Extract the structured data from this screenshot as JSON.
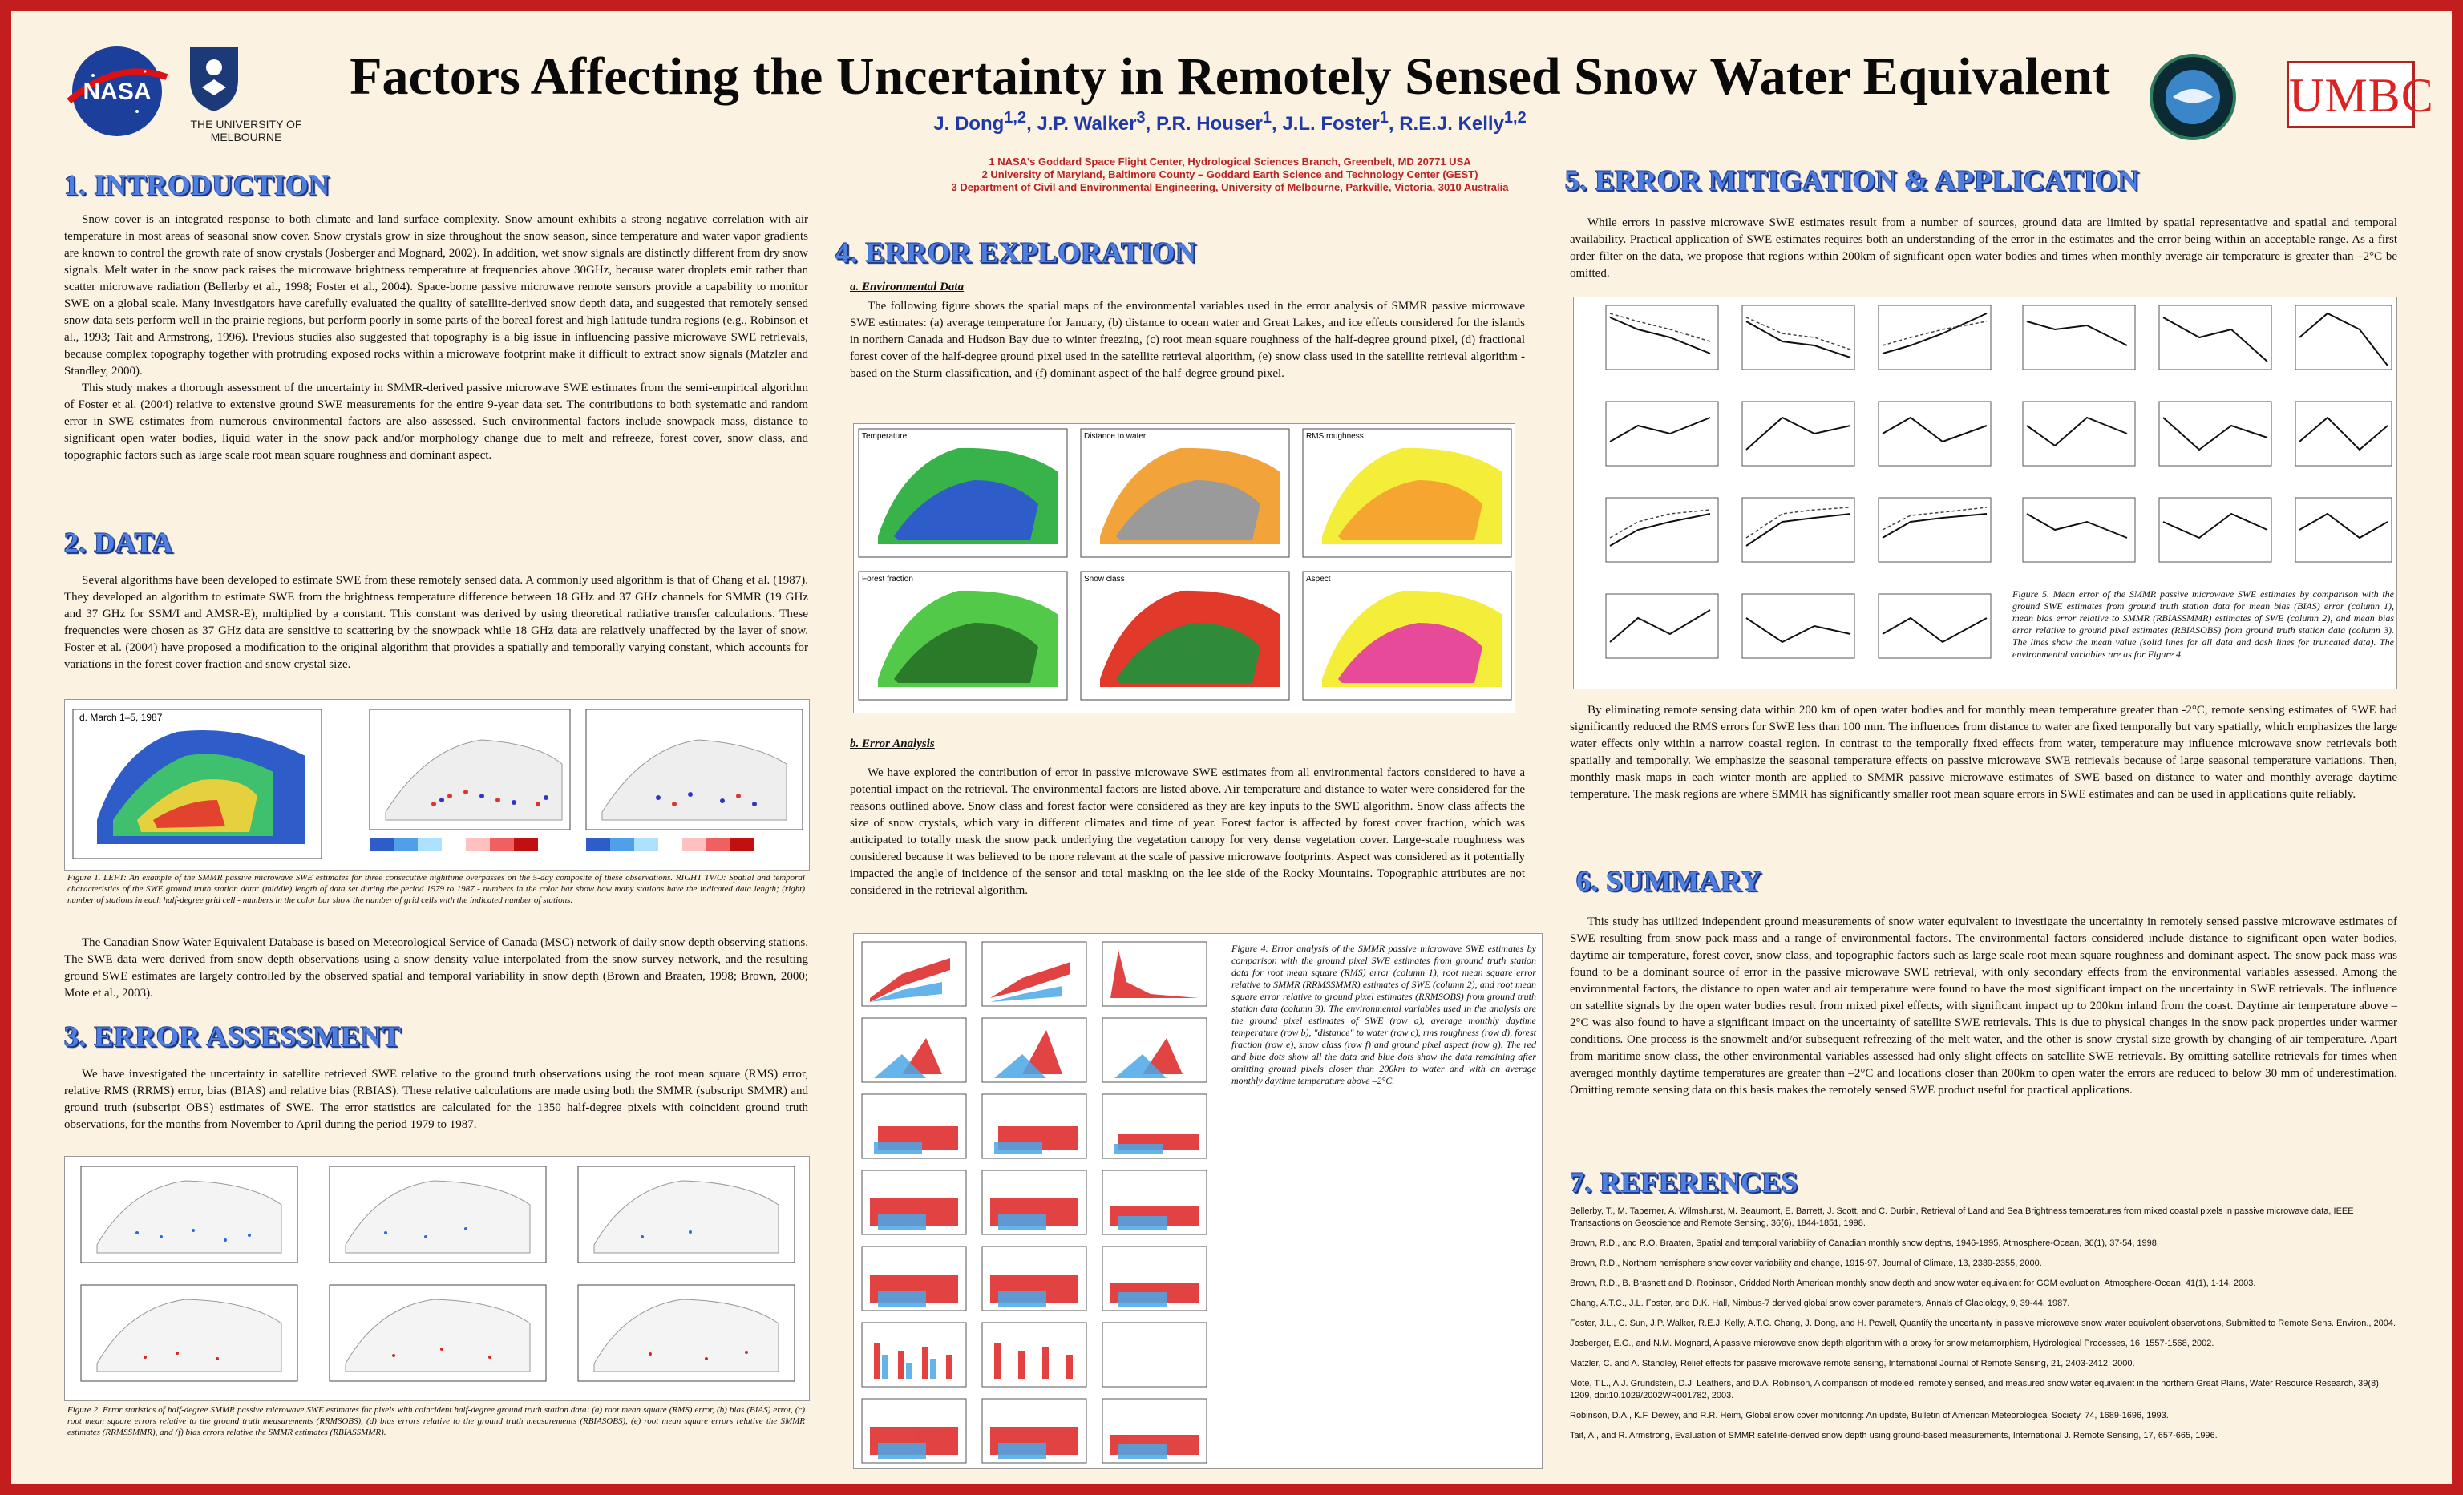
{
  "header": {
    "title": "Factors Affecting the Uncertainty in Remotely Sensed Snow Water Equivalent",
    "authors": "J. Dong1,2, J.P. Walker3, P.R. Houser1, J.L. Foster1, R.E.J. Kelly1,2",
    "affiliations": [
      "1 NASA's Goddard Space Flight Center, Hydrological Sciences Branch, Greenbelt, MD 20771 USA",
      "2 University of Maryland, Baltimore County – Goddard Earth Science and Technology Center (GEST)",
      "3 Department of Civil and Environmental Engineering, University of Melbourne, Parkville, Victoria, 3010 Australia"
    ],
    "logos": {
      "nasa": "NASA",
      "melbourne": "THE UNIVERSITY OF MELBOURNE",
      "umbc": "UMBC"
    }
  },
  "sections": {
    "intro": {
      "heading": "1. INTRODUCTION",
      "p1": "Snow cover is an integrated response to both climate and land surface complexity. Snow amount exhibits a strong negative correlation with air temperature in most areas of seasonal snow cover. Snow crystals grow in size throughout the snow season, since temperature and water vapor gradients are known to control the growth rate of snow crystals (Josberger and Mognard, 2002). In addition, wet snow signals are distinctly different from dry snow signals. Melt water in the snow pack raises the microwave brightness temperature at frequencies above 30GHz, because water droplets emit rather than scatter microwave radiation (Bellerby et al., 1998; Foster et al., 2004). Space-borne passive microwave remote sensors provide a capability to monitor SWE on a global scale. Many investigators have carefully evaluated the quality of satellite-derived snow depth data, and suggested that remotely sensed snow data sets perform well in the prairie regions, but perform poorly in some parts of the boreal forest and high latitude tundra regions (e.g., Robinson et al., 1993; Tait and Armstrong, 1996). Previous studies also suggested that topography is a big issue in influencing passive microwave SWE retrievals, because complex topography together with protruding exposed rocks within a microwave footprint make it difficult to extract snow signals (Matzler and Standley, 2000).",
      "p2": "This study makes a thorough assessment of the uncertainty in SMMR-derived passive microwave SWE estimates from the semi-empirical algorithm of Foster et al. (2004) relative to extensive ground SWE measurements for the entire 9-year data set. The contributions to both systematic and random error in SWE estimates from numerous environmental factors are also assessed. Such environmental factors include snowpack mass, distance to significant open water bodies, liquid water in the snow pack and/or morphology change due to melt and refreeze, forest cover, snow class, and topographic factors such as large scale root mean square roughness and dominant aspect."
    },
    "data": {
      "heading": "2. DATA",
      "p1": "Several algorithms have been developed to estimate SWE from these remotely sensed data. A commonly used algorithm is that of Chang et al. (1987). They developed an algorithm to estimate SWE from the brightness temperature difference between 18 GHz and 37 GHz channels for SMMR (19 GHz and 37 GHz for SSM/I and AMSR-E), multiplied by a constant. This constant was derived by using theoretical radiative transfer calculations. These frequencies were chosen as 37 GHz data are sensitive to scattering by the snowpack while 18 GHz data are relatively unaffected by the layer of snow. Foster et al. (2004) have proposed a modification to the original algorithm that provides a spatially and temporally varying constant, which accounts for variations in the forest cover fraction and snow crystal size.",
      "fig1_label": "d. March 1–5, 1987",
      "fig1_caption": "Figure 1. LEFT: An example of the SMMR passive microwave SWE estimates for three consecutive nighttime overpasses on the 5-day composite of these observations. RIGHT TWO: Spatial and temporal characteristics of the SWE ground truth station data: (middle) length of data set during the period 1979 to 1987 - numbers in the color bar show how many stations have the indicated data length; (right) number of stations in each half-degree grid cell - numbers in the color bar show the number of grid cells with the indicated number of stations.",
      "p2": "The Canadian Snow Water Equivalent Database is based on Meteorological Service of Canada (MSC) network of daily snow depth observing stations. The SWE data were derived from snow depth observations using a snow density value interpolated from the snow survey network, and the resulting ground SWE estimates are largely controlled by the observed spatial and temporal variability in snow depth (Brown and Braaten, 1998; Brown, 2000; Mote et al., 2003)."
    },
    "assessment": {
      "heading": "3. ERROR ASSESSMENT",
      "p1": "We have investigated the uncertainty in satellite retrieved SWE relative to the ground truth observations using the root mean square (RMS) error, relative RMS (RRMS) error, bias (BIAS) and relative bias (RBIAS). These relative calculations are made using both the SMMR (subscript SMMR) and ground truth (subscript OBS) estimates of SWE. The error statistics are calculated for the 1350 half-degree pixels with coincident ground truth observations, for the months from November to April during the period 1979 to 1987.",
      "fig2_caption": "Figure 2. Error statistics of half-degree SMMR passive microwave SWE estimates for pixels with coincident half-degree ground truth station data: (a) root mean square (RMS) error, (b) bias (BIAS) error, (c) root mean square errors relative to the ground truth measurements (RRMSOBS), (d) bias errors relative to the ground truth measurements (RBIASOBS), (e) root mean square errors relative the SMMR estimates (RRMSSMMR), and (f) bias errors relative the SMMR estimates (RBIASSMMR)."
    },
    "exploration": {
      "heading": "4. ERROR EXPLORATION",
      "sub_a": "a. Environmental Data",
      "p1": "The following figure shows the spatial maps of the environmental variables used in the error analysis of SMMR passive microwave SWE estimates: (a) average temperature for January, (b) distance to ocean water and Great Lakes, and ice effects considered for the islands in northern Canada and Hudson Bay due to winter freezing, (c) root mean square roughness of the half-degree ground pixel, (d) fractional forest cover of the half-degree ground pixel used in the satellite retrieval algorithm, (e) snow class used in the satellite retrieval algorithm - based on the Sturm classification, and (f) dominant aspect of the half-degree ground pixel.",
      "fig3_panels": [
        "Temperature",
        "Distance to water",
        "RMS roughness",
        "Forest fraction",
        "Snow class",
        "Aspect"
      ],
      "sub_b": "b. Error Analysis",
      "p2": "We have explored the contribution of error in passive microwave SWE estimates from all environmental factors considered to have a potential impact on the retrieval. The environmental factors are listed above. Air temperature and distance to water were considered for the reasons outlined above. Snow class and forest factor were considered as they are key inputs to the SWE algorithm. Snow class affects the size of snow crystals, which vary in different climates and time of year. Forest factor is affected by forest cover fraction, which was anticipated to totally mask the snow pack underlying the vegetation canopy for very dense vegetation cover. Large-scale roughness was considered because it was believed to be more relevant at the scale of passive microwave footprints. Aspect was considered as it potentially impacted the angle of incidence of the sensor and total masking on the lee side of the Rocky Mountains. Topographic attributes are not considered in the retrieval algorithm.",
      "fig4_caption": "Figure 4. Error analysis of the SMMR passive microwave SWE estimates by comparison with the ground pixel SWE estimates from ground truth station data for root mean square (RMS) error (column 1), root mean square error relative to SMMR (RRMSSMMR) estimates of SWE (column 2), and root mean square error relative to ground pixel estimates (RRMSOBS) from ground truth station data (column 3). The environmental variables used in the analysis are the ground pixel estimates of SWE (row a), average monthly daytime temperature (row b), \"distance\" to water (row c), rms roughness (row d), forest fraction (row e), snow class (row f) and ground pixel aspect (row g). The red and blue dots show all the data and blue dots show the data remaining after omitting ground pixels closer than 200km to water and with an average monthly daytime temperature above –2°C."
    },
    "mitigation": {
      "heading": "5. ERROR MITIGATION & APPLICATION",
      "p1": "While errors in passive microwave SWE estimates result from a number of sources, ground data are limited by spatial representative and spatial and temporal availability. Practical application of SWE estimates requires both an understanding of the error in the estimates and the error being within an acceptable range. As a first order filter on the data, we propose that regions within 200km of significant open water bodies and times when monthly average air temperature is greater than –2°C be omitted.",
      "fig5_caption": "Figure 5. Mean error of the SMMR passive microwave SWE estimates by comparison with the ground SWE estimates from ground truth station data for mean bias (BIAS) error (column 1), mean bias error relative to SMMR (RBIASSMMR) estimates of SWE (column 2), and mean bias error relative to ground pixel estimates (RBIASOBS) from ground truth station data (column 3). The lines show the mean value (solid lines for all data and dash lines for truncated data). The environmental variables are as for Figure 4.",
      "p2": "By eliminating remote sensing data within 200 km of open water bodies and for monthly mean temperature greater than -2°C, remote sensing estimates of SWE had significantly reduced the RMS errors for SWE less than 100 mm. The influences from distance to water are fixed temporally but vary spatially, which emphasizes the large water effects only within a narrow coastal region. In contrast to the temporally fixed effects from water, temperature may influence microwave snow retrievals both spatially and temporally. We emphasize the seasonal temperature effects on passive microwave SWE retrievals because of large seasonal temperature variations. Then, monthly mask maps in each winter month are applied to SMMR passive microwave estimates of SWE based on distance to water and monthly average daytime temperature. The mask regions are where SMMR has significantly smaller root mean square errors in SWE estimates and can be used in applications quite reliably."
    },
    "summary": {
      "heading": "6. SUMMARY",
      "p1": "This study has utilized independent ground measurements of snow water equivalent to investigate the uncertainty in remotely sensed passive microwave estimates of SWE resulting from snow pack mass and a range of environmental factors. The environmental factors considered include distance to significant open water bodies, daytime air temperature, forest cover, snow class, and topographic factors such as large scale root mean square roughness and dominant aspect. The snow pack mass was found to be a dominant source of error in the passive microwave SWE retrieval, with only secondary effects from the environmental variables assessed. Among the environmental factors, the distance to open water and air temperature were found to have the most significant impact on the uncertainty in SWE retrievals. The influence on satellite signals by the open water bodies result from mixed pixel effects, with significant impact up to 200km inland from the coast. Daytime air temperature above –2°C was also found to have a significant impact on the uncertainty of satellite SWE retrievals. This is due to physical changes in the snow pack properties under warmer conditions. One process is the snowmelt and/or subsequent refreezing of the melt water, and the other is snow crystal size growth by changing of air temperature. Apart from maritime snow class, the other environmental variables assessed had only slight effects on satellite SWE retrievals. By omitting satellite retrievals for times when averaged monthly daytime temperatures are greater than –2°C and locations closer than 200km to open water the errors are reduced to below 30 mm of underestimation. Omitting remote sensing data on this basis makes the remotely sensed SWE product useful for practical applications."
    },
    "references": {
      "heading": "7. REFERENCES",
      "items": [
        "Bellerby, T., M. Taberner, A. Wilmshurst, M. Beaumont, E. Barrett, J. Scott, and C. Durbin, Retrieval of Land and Sea Brightness temperatures from mixed coastal pixels in passive microwave data, IEEE Transactions on Geoscience and Remote Sensing, 36(6), 1844-1851, 1998.",
        "Brown, R.D., and R.O. Braaten, Spatial and temporal variability of Canadian monthly snow depths, 1946-1995, Atmosphere-Ocean, 36(1), 37-54, 1998.",
        "Brown, R.D., Northern hemisphere snow cover variability and change, 1915-97, Journal of Climate, 13, 2339-2355, 2000.",
        "Brown, R.D., B. Brasnett and D. Robinson, Gridded North American monthly snow depth and snow water equivalent for GCM evaluation, Atmosphere-Ocean, 41(1), 1-14, 2003.",
        "Chang, A.T.C., J.L. Foster, and D.K. Hall, Nimbus-7 derived global snow cover parameters, Annals of Glaciology, 9, 39-44, 1987.",
        "Foster, J.L., C. Sun, J.P. Walker, R.E.J. Kelly, A.T.C. Chang, J. Dong, and H. Powell, Quantify the uncertainty in passive microwave snow water equivalent observations, Submitted to Remote Sens. Environ., 2004.",
        "Josberger, E.G., and N.M. Mognard, A passive microwave snow depth algorithm with a proxy for snow metamorphism, Hydrological Processes, 16, 1557-1568, 2002.",
        "Matzler, C. and A. Standley, Relief effects for passive microwave remote sensing, International Journal of Remote Sensing, 21, 2403-2412, 2000.",
        "Mote, T.L., A.J. Grundstein, D.J. Leathers, and D.A. Robinson, A comparison of modeled, remotely sensed, and measured snow water equivalent in the northern Great Plains, Water Resource Research, 39(8), 1209, doi:10.1029/2002WR001782, 2003.",
        "Robinson, D.A., K.F. Dewey, and R.R. Heim, Global snow cover monitoring: An update, Bulletin of American Meteorological Society, 74, 1689-1696, 1993.",
        "Tait, A., and R. Armstrong, Evaluation of SMMR satellite-derived snow depth using ground-based measurements, International J. Remote Sensing, 17, 657-665, 1996."
      ]
    }
  },
  "colors": {
    "border": "#c41d1d",
    "background": "#fcf2e2",
    "heading": "#4f7fe0",
    "authors": "#1f3aa8",
    "affiliations": "#b82323"
  }
}
